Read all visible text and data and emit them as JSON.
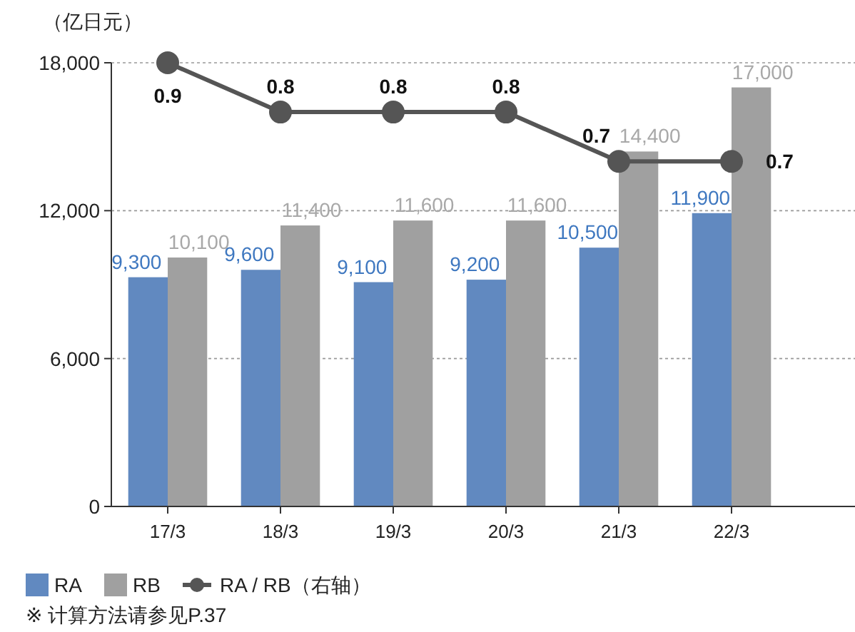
{
  "chart_data": {
    "type": "bar",
    "ylabel": "（亿日元）",
    "categories": [
      "17/3",
      "18/3",
      "19/3",
      "20/3",
      "21/3",
      "22/3"
    ],
    "series": [
      {
        "name": "RA",
        "color": "#6189c0",
        "values": [
          9300,
          9600,
          9100,
          9200,
          10500,
          11900
        ],
        "value_labels": [
          "9,300",
          "9,600",
          "9,100",
          "9,200",
          "10,500",
          "11,900"
        ]
      },
      {
        "name": "RB",
        "color": "#a0a0a0",
        "values": [
          10100,
          11400,
          11600,
          11600,
          14400,
          17000
        ],
        "value_labels": [
          "10,100",
          "11,400",
          "11,600",
          "11,600",
          "14,400",
          "17,000"
        ]
      },
      {
        "name": "RA / RB（右轴）",
        "type": "line",
        "axis": "y2",
        "color": "#555555",
        "values": [
          0.9,
          0.8,
          0.8,
          0.8,
          0.7,
          0.7
        ],
        "value_labels": [
          "0.9",
          "0.8",
          "0.8",
          "0.8",
          "0.7",
          "0.7"
        ]
      }
    ],
    "ylim": [
      0,
      18000
    ],
    "yticks": [
      0,
      {
        "value": 6000,
        "label": "6,000"
      },
      {
        "value": 12000,
        "label": "12,000"
      },
      {
        "value": 18000,
        "label": "18,000"
      }
    ],
    "grid": "y",
    "legend": "bottom",
    "marker": "circle",
    "tick_labels": "xy",
    "annotations": [
      "※ 计算方法请参见P.37"
    ]
  }
}
